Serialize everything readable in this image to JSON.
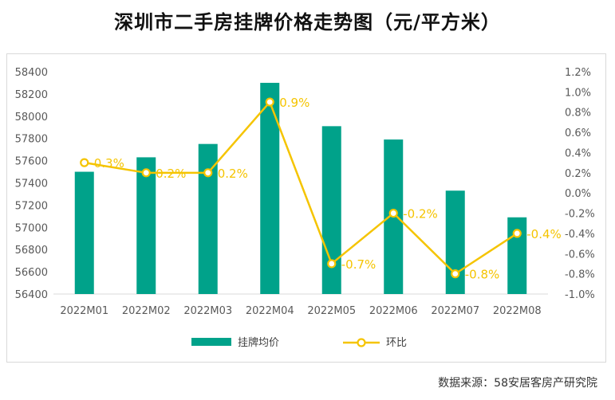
{
  "title": "深圳市二手房挂牌价格走势图（元/平方米）",
  "source": "数据来源：58安居客房产研究院",
  "colors": {
    "bar": "#00a28a",
    "line": "#f5c400"
  },
  "chart_data": {
    "type": "bar",
    "categories": [
      "2022M01",
      "2022M02",
      "2022M03",
      "2022M04",
      "2022M05",
      "2022M06",
      "2022M07",
      "2022M08"
    ],
    "series": [
      {
        "name": "挂牌均价",
        "type": "bar",
        "axis": "left",
        "values": [
          57500,
          57630,
          57750,
          58300,
          57910,
          57790,
          57330,
          57090
        ]
      },
      {
        "name": "环比",
        "type": "line",
        "axis": "right",
        "values": [
          0.3,
          0.2,
          0.2,
          0.9,
          -0.7,
          -0.2,
          -0.8,
          -0.4
        ],
        "labels": [
          "0.3%",
          "0.2%",
          "0.2%",
          "0.9%",
          "-0.7%",
          "-0.2%",
          "-0.8%",
          "-0.4%"
        ]
      }
    ],
    "y_left": {
      "ylim": [
        56400,
        58400
      ],
      "ticks": [
        "58400",
        "58200",
        "58000",
        "57800",
        "57600",
        "57400",
        "57200",
        "57000",
        "56800",
        "56600",
        "56400"
      ]
    },
    "y_right": {
      "ylim": [
        -1.0,
        1.2
      ],
      "ticks": [
        "1.2%",
        "1.0%",
        "0.8%",
        "0.6%",
        "0.4%",
        "0.2%",
        "0.0%",
        "-0.2%",
        "-0.4%",
        "-0.6%",
        "-0.8%",
        "-1.0%"
      ]
    },
    "legend": {
      "position": "bottom"
    },
    "grid": false
  }
}
